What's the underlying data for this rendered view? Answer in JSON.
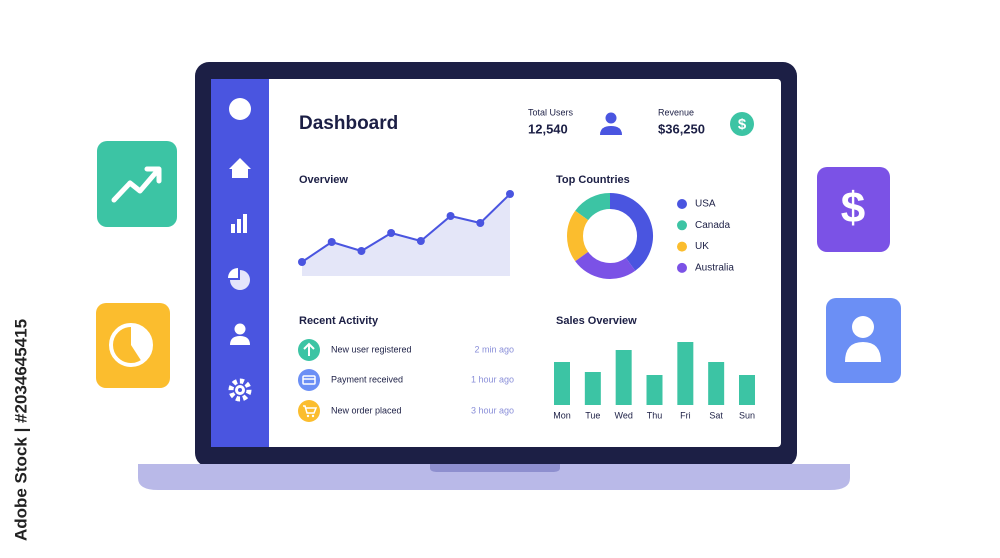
{
  "watermark": "Adobe Stock | #2034645415",
  "dashboard": {
    "title": "Dashboard",
    "stats": [
      {
        "label": "Total Users",
        "value": "12,540"
      },
      {
        "label": "Revenue",
        "value": "$36,250"
      }
    ]
  },
  "recent_activity": {
    "title": "Recent Activity",
    "items": [
      {
        "text": "New user registered",
        "time": "2 min ago"
      },
      {
        "text": "Payment received",
        "time": "1 hour ago"
      },
      {
        "text": "New order placed",
        "time": "3 hour ago"
      }
    ]
  },
  "chart_data": [
    {
      "type": "line",
      "title": "Overview",
      "values": [
        14,
        34,
        25,
        43,
        35,
        60,
        53,
        82
      ],
      "color": "#4a55e0",
      "fill": "#e4e6f8"
    },
    {
      "type": "pie",
      "title": "Top Countries",
      "donut": true,
      "categories": [
        "USA",
        "Canada",
        "UK",
        "Australia"
      ],
      "values": [
        40,
        15,
        20,
        25
      ],
      "colors": [
        "#4a55e0",
        "#3cc4a4",
        "#fbbd2e",
        "#7b52e6"
      ]
    },
    {
      "type": "bar",
      "title": "Sales Overview",
      "categories": [
        "Mon",
        "Tue",
        "Wed",
        "Thu",
        "Fri",
        "Sat",
        "Sun"
      ],
      "values": [
        43,
        33,
        55,
        30,
        63,
        43,
        30
      ],
      "color": "#3cc4a4"
    }
  ]
}
